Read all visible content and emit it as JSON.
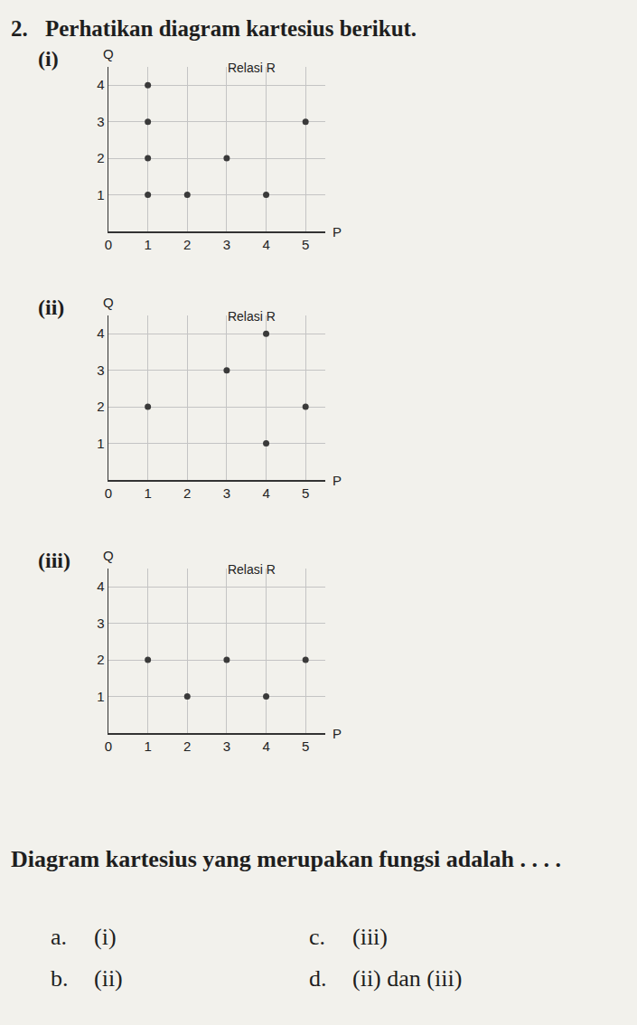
{
  "header": {
    "number": "2.",
    "text": "Perhatikan diagram kartesius berikut."
  },
  "chart_data": [
    {
      "label": "(i)",
      "type": "scatter",
      "title": "Relasi R",
      "x_label": "P",
      "y_label": "Q",
      "x": [
        1,
        1,
        5,
        1,
        3,
        1,
        2,
        4
      ],
      "values": [
        4,
        3,
        3,
        2,
        2,
        1,
        1,
        1
      ],
      "xlim": [
        0,
        5.5
      ],
      "ylim": [
        0,
        4.5
      ],
      "xticks": [
        0,
        1,
        2,
        3,
        4,
        5
      ],
      "yticks": [
        1,
        2,
        3,
        4
      ],
      "grid": true,
      "color": "#3a3a3a",
      "marker": "circle"
    },
    {
      "label": "(ii)",
      "type": "scatter",
      "title": "Relasi R",
      "x_label": "P",
      "y_label": "Q",
      "x": [
        1,
        3,
        4,
        4,
        5
      ],
      "values": [
        2,
        3,
        4,
        1,
        2
      ],
      "xlim": [
        0,
        5.5
      ],
      "ylim": [
        0,
        4.5
      ],
      "xticks": [
        0,
        1,
        2,
        3,
        4,
        5
      ],
      "yticks": [
        1,
        2,
        3,
        4
      ],
      "grid": true,
      "color": "#3a3a3a",
      "marker": "circle"
    },
    {
      "label": "(iii)",
      "type": "scatter",
      "title": "Relasi R",
      "x_label": "P",
      "y_label": "Q",
      "x": [
        1,
        3,
        5,
        2,
        4
      ],
      "values": [
        2,
        2,
        2,
        1,
        1
      ],
      "xlim": [
        0,
        5.5
      ],
      "ylim": [
        0,
        4.5
      ],
      "xticks": [
        0,
        1,
        2,
        3,
        4,
        5
      ],
      "yticks": [
        1,
        2,
        3,
        4
      ],
      "grid": true,
      "color": "#3a3a3a",
      "marker": "circle"
    }
  ],
  "question": "Diagram kartesius yang merupakan fungsi adalah . . . .",
  "options": [
    {
      "letter": "a.",
      "text": "(i)"
    },
    {
      "letter": "b.",
      "text": "(ii)"
    },
    {
      "letter": "c.",
      "text": "(iii)"
    },
    {
      "letter": "d.",
      "text": "(ii) dan (iii)"
    }
  ]
}
